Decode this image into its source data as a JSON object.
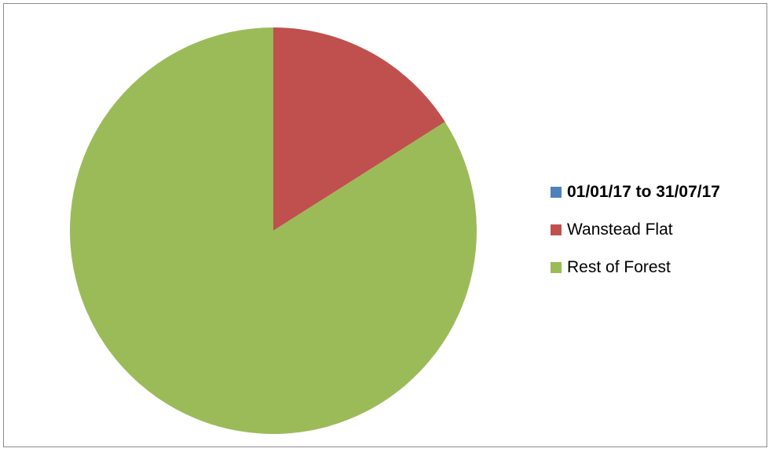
{
  "chart_data": {
    "type": "pie",
    "title": "",
    "categories": [
      "01/01/17 to 31/07/17",
      "Wanstead Flat",
      "Rest of Forest"
    ],
    "values": [
      0,
      16,
      84
    ],
    "colors": [
      "#4f81bd",
      "#c0504d",
      "#9bbb59"
    ],
    "legend_position": "right",
    "legend": [
      {
        "label": "01/01/17 to 31/07/17",
        "color": "#4f81bd",
        "bold": true
      },
      {
        "label": "Wanstead Flat",
        "color": "#c0504d",
        "bold": false
      },
      {
        "label": "Rest of Forest",
        "color": "#9bbb59",
        "bold": false
      }
    ]
  }
}
